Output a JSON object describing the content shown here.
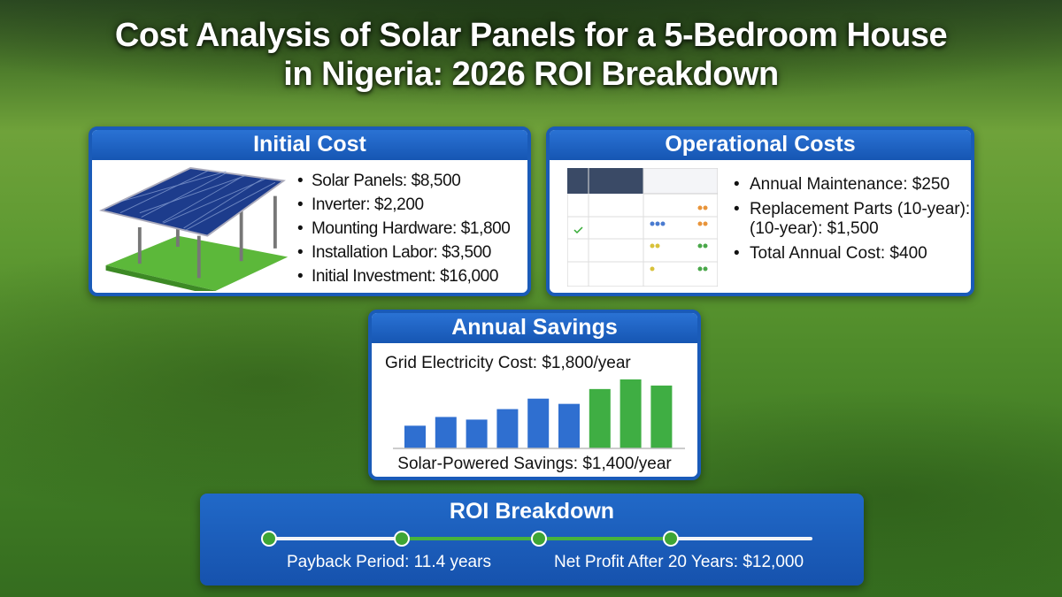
{
  "title": {
    "line1": "Cost Analysis of Solar Panels for a 5-Bedroom House",
    "line2": "in Nigeria: 2026 ROI Breakdown"
  },
  "initial_cost": {
    "heading": "Initial Cost",
    "items": [
      "Solar Panels: $8,500",
      "Inverter: $2,200",
      "Mounting Hardware: $1,800",
      "Installation Labor: $3,500",
      "Initial Investment: $16,000"
    ]
  },
  "operational_costs": {
    "heading": "Operational Costs",
    "items": [
      "Annual Maintenance: $250",
      "Replacement Parts (10-year): (10-year): $1,500",
      "Total Annual Cost: $400"
    ]
  },
  "annual_savings": {
    "heading": "Annual Savings",
    "grid_cost": "Grid Electricity Cost: $1,800/year",
    "solar_savings": "Solar-Powered Savings: $1,400/year"
  },
  "chart_data": {
    "type": "bar",
    "values": [
      26,
      36,
      33,
      45,
      57,
      51,
      68,
      79,
      72
    ],
    "colors": [
      "#2f6fd0",
      "#2f6fd0",
      "#2f6fd0",
      "#2f6fd0",
      "#2f6fd0",
      "#2f6fd0",
      "#3fae43",
      "#3fae43",
      "#3fae43"
    ]
  },
  "roi": {
    "heading": "ROI Breakdown",
    "payback": "Payback Period: 11.4 years",
    "net_profit": "Net Profit After 20 Years: $12,000"
  },
  "colors": {
    "accent_blue": "#1a5bb8",
    "green": "#3ea535"
  }
}
